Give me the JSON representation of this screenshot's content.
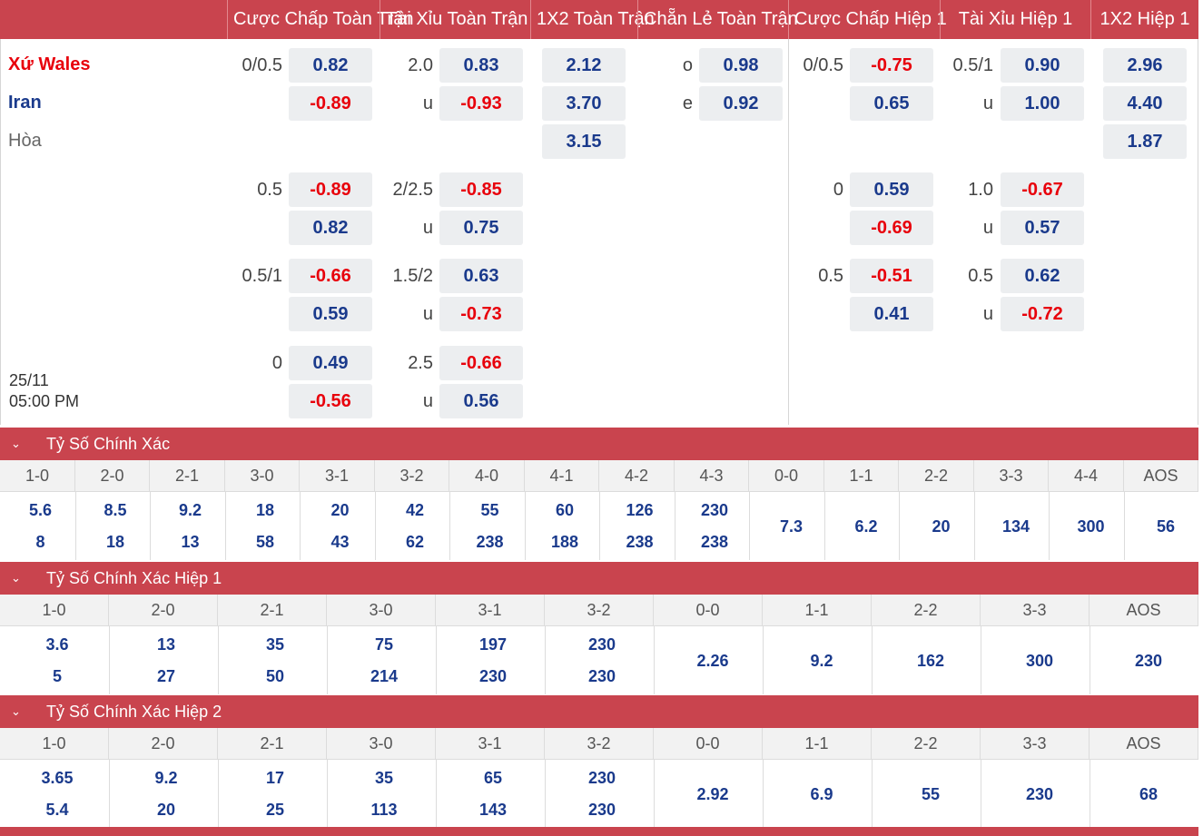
{
  "header_tabs": [
    "Cược Chấp Toàn Trận",
    "Tài Xỉu Toàn Trận",
    "1X2 Toàn Trận",
    "Chẵn Lẻ Toàn Trận",
    "Cược Chấp Hiệp 1",
    "Tài Xỉu Hiệp 1",
    "1X2 Hiệp 1"
  ],
  "match": {
    "home": "Xứ Wales",
    "away": "Iran",
    "draw": "Hòa",
    "date": "25/11",
    "time": "05:00 PM"
  },
  "odds_rows": [
    {
      "hdp": "0/0.5",
      "hdp_h": "0.82",
      "hdp_a": "-0.89",
      "ou": "2.0",
      "ou_o": "0.83",
      "ou_u_lbl": "u",
      "ou_u": "-0.93",
      "x12_1": "2.12",
      "x12_2": "3.70",
      "x12_x": "3.15",
      "oe_o_lbl": "o",
      "oe_o": "0.98",
      "oe_e_lbl": "e",
      "oe_e": "0.92",
      "h1_hdp": "0/0.5",
      "h1_hdp_h": "-0.75",
      "h1_hdp_a": "0.65",
      "h1_ou": "0.5/1",
      "h1_ou_o": "0.90",
      "h1_ou_u_lbl": "u",
      "h1_ou_u": "1.00",
      "h1_x12_1": "2.96",
      "h1_x12_2": "4.40",
      "h1_x12_x": "1.87"
    },
    {
      "hdp": "0.5",
      "hdp_h": "-0.89",
      "hdp_a": "0.82",
      "ou": "2/2.5",
      "ou_o": "-0.85",
      "ou_u_lbl": "u",
      "ou_u": "0.75",
      "h1_hdp": "0",
      "h1_hdp_h": "0.59",
      "h1_hdp_a": "-0.69",
      "h1_ou": "1.0",
      "h1_ou_o": "-0.67",
      "h1_ou_u_lbl": "u",
      "h1_ou_u": "0.57"
    },
    {
      "hdp": "0.5/1",
      "hdp_h": "-0.66",
      "hdp_a": "0.59",
      "ou": "1.5/2",
      "ou_o": "0.63",
      "ou_u_lbl": "u",
      "ou_u": "-0.73",
      "h1_hdp": "0.5",
      "h1_hdp_h": "-0.51",
      "h1_hdp_a": "0.41",
      "h1_ou": "0.5",
      "h1_ou_o": "0.62",
      "h1_ou_u_lbl": "u",
      "h1_ou_u": "-0.72"
    },
    {
      "hdp": "0",
      "hdp_h": "0.49",
      "hdp_a": "-0.56",
      "ou": "2.5",
      "ou_o": "-0.66",
      "ou_u_lbl": "u",
      "ou_u": "0.56"
    }
  ],
  "sections": [
    {
      "title": "Tỷ Số Chính Xác",
      "pair_scores": [
        "1-0",
        "2-0",
        "2-1",
        "3-0",
        "3-1",
        "3-2",
        "4-0",
        "4-1",
        "4-2",
        "4-3"
      ],
      "pair_home": [
        "5.6",
        "8.5",
        "9.2",
        "18",
        "20",
        "42",
        "55",
        "60",
        "126",
        "230"
      ],
      "pair_away": [
        "8",
        "18",
        "13",
        "58",
        "43",
        "62",
        "238",
        "188",
        "238",
        "238"
      ],
      "single_scores": [
        "0-0",
        "1-1",
        "2-2",
        "3-3",
        "4-4",
        "AOS"
      ],
      "single_vals": [
        "7.3",
        "6.2",
        "20",
        "134",
        "300",
        "56"
      ]
    },
    {
      "title": "Tỷ Số Chính Xác Hiệp 1",
      "pair_scores": [
        "1-0",
        "2-0",
        "2-1",
        "3-0",
        "3-1",
        "3-2"
      ],
      "pair_home": [
        "3.6",
        "13",
        "35",
        "75",
        "197",
        "230"
      ],
      "pair_away": [
        "5",
        "27",
        "50",
        "214",
        "230",
        "230"
      ],
      "single_scores": [
        "0-0",
        "1-1",
        "2-2",
        "3-3",
        "AOS"
      ],
      "single_vals": [
        "2.26",
        "9.2",
        "162",
        "300",
        "230"
      ]
    },
    {
      "title": "Tỷ Số Chính Xác Hiệp 2",
      "pair_scores": [
        "1-0",
        "2-0",
        "2-1",
        "3-0",
        "3-1",
        "3-2"
      ],
      "pair_home": [
        "3.65",
        "9.2",
        "17",
        "35",
        "65",
        "230"
      ],
      "pair_away": [
        "5.4",
        "20",
        "25",
        "113",
        "143",
        "230"
      ],
      "single_scores": [
        "0-0",
        "1-1",
        "2-2",
        "3-3",
        "AOS"
      ],
      "single_vals": [
        "2.92",
        "6.9",
        "55",
        "230",
        "68"
      ]
    }
  ],
  "colors": {
    "brand_red": "#c9444e",
    "positive_blue": "#1a3a8c",
    "negative_red": "#e8000b"
  },
  "icons": {
    "collapse": "chevron-down-icon"
  }
}
